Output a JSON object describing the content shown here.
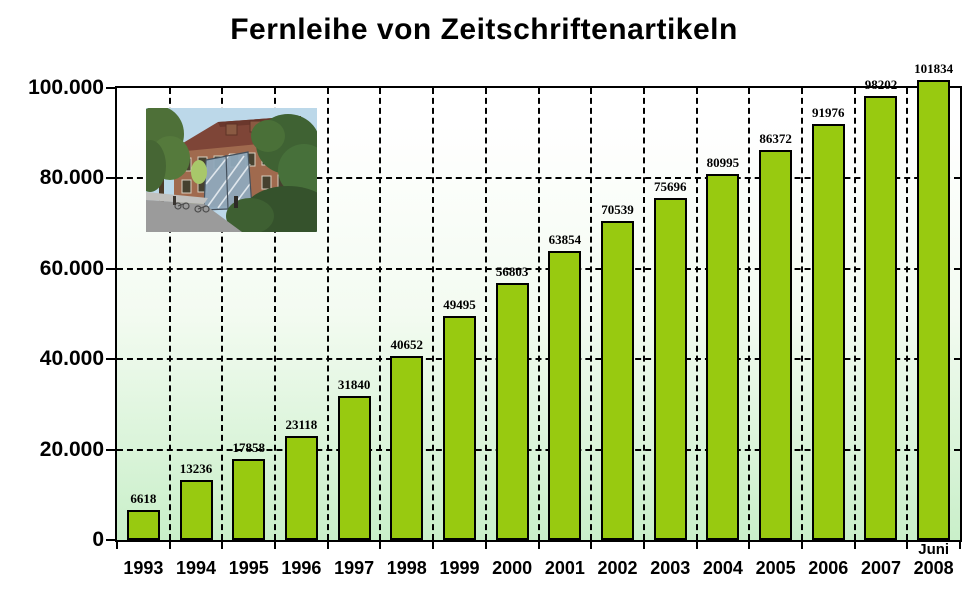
{
  "chart_data": {
    "type": "bar",
    "title": "Fernleihe von Zeitschriftenartikeln",
    "categories": [
      "1993",
      "1994",
      "1995",
      "1996",
      "1997",
      "1998",
      "1999",
      "2000",
      "2001",
      "2002",
      "2003",
      "2004",
      "2005",
      "2006",
      "2007",
      "2008"
    ],
    "values": [
      6618,
      13236,
      17858,
      23118,
      31840,
      40652,
      49495,
      56803,
      63854,
      70539,
      75696,
      80995,
      86372,
      91976,
      98202,
      101834
    ],
    "last_category_note": "Juni",
    "y_ticks": [
      {
        "value": 0,
        "label": "0"
      },
      {
        "value": 20000,
        "label": "20.000"
      },
      {
        "value": 40000,
        "label": "40.000"
      },
      {
        "value": 60000,
        "label": "60.000"
      },
      {
        "value": 80000,
        "label": "80.000"
      },
      {
        "value": 100000,
        "label": "100.000"
      }
    ],
    "ylim": [
      0,
      100000
    ],
    "xlabel": "",
    "ylabel": "",
    "grid": "dashed horizontal and vertical",
    "legend": "none",
    "colors": {
      "bar_fill": "#98CA10",
      "bar_border": "#000000",
      "grid": "#000000",
      "text": "#000000",
      "plot_bg_top": "#FFFFFF",
      "plot_bg_mid": "#F3FBF1",
      "plot_bg_bottom": "#C9EFC9"
    },
    "inset_photo_alt": "library-building-photo"
  }
}
